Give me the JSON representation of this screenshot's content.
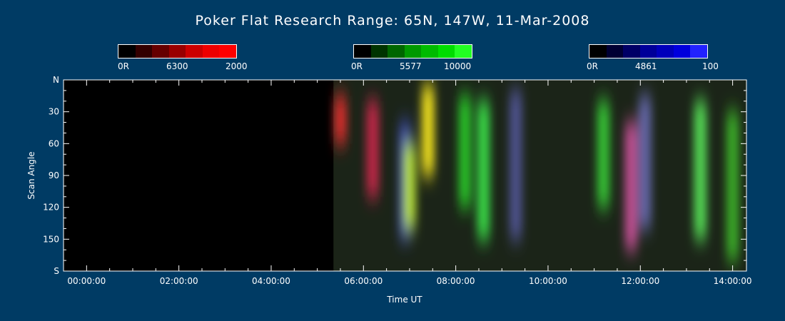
{
  "chart_data": {
    "type": "heatmap",
    "title": "Poker Flat Research Range: 65N, 147W, 11-Mar-2008",
    "xlabel": "Time UT",
    "ylabel": "Scan Angle",
    "xlim": [
      -0.5,
      14.3
    ],
    "ylim": [
      0,
      180
    ],
    "x_ticks": [
      0,
      2,
      4,
      6,
      8,
      10,
      12,
      14
    ],
    "x_tick_labels": [
      "00:00:00",
      "02:00:00",
      "04:00:00",
      "06:00:00",
      "08:00:00",
      "10:00:00",
      "12:00:00",
      "14:00:00"
    ],
    "y_ticks": [
      0,
      30,
      60,
      90,
      120,
      150,
      180
    ],
    "y_tick_labels": [
      "N",
      "30",
      "60",
      "90",
      "120",
      "150",
      "S"
    ],
    "data_start_time_hours": 5.35,
    "colorbars": [
      {
        "wavelength": "6300",
        "min_label": "0R",
        "max_label": "2000",
        "colors": [
          "#000000",
          "#330000",
          "#660000",
          "#990000",
          "#cc0000",
          "#ee0000",
          "#ff0000"
        ]
      },
      {
        "wavelength": "5577",
        "min_label": "0R",
        "max_label": "10000",
        "colors": [
          "#000000",
          "#003300",
          "#006600",
          "#009900",
          "#00bb00",
          "#00dd00",
          "#22ff22"
        ]
      },
      {
        "wavelength": "4861",
        "min_label": "0R",
        "max_label": "100",
        "colors": [
          "#000000",
          "#000033",
          "#000066",
          "#000099",
          "#0000bb",
          "#0000dd",
          "#2222ff"
        ]
      }
    ],
    "features": [
      {
        "time": 5.5,
        "angle_top": 15,
        "angle_bottom": 60,
        "color": "#ff3030",
        "intensity": 0.8
      },
      {
        "time": 6.2,
        "angle_top": 20,
        "angle_bottom": 110,
        "color": "#ff2a5a",
        "intensity": 0.7
      },
      {
        "time": 6.9,
        "angle_top": 40,
        "angle_bottom": 150,
        "color": "#5060ff",
        "intensity": 0.6
      },
      {
        "time": 7.0,
        "angle_top": 60,
        "angle_bottom": 140,
        "color": "#d0ff30",
        "intensity": 0.8
      },
      {
        "time": 7.4,
        "angle_top": 5,
        "angle_bottom": 90,
        "color": "#ffee20",
        "intensity": 0.9
      },
      {
        "time": 8.2,
        "angle_top": 15,
        "angle_bottom": 120,
        "color": "#30ff30",
        "intensity": 0.7
      },
      {
        "time": 8.6,
        "angle_top": 20,
        "angle_bottom": 150,
        "color": "#40ff50",
        "intensity": 0.8
      },
      {
        "time": 9.3,
        "angle_top": 10,
        "angle_bottom": 150,
        "color": "#8080ff",
        "intensity": 0.5
      },
      {
        "time": 11.2,
        "angle_top": 20,
        "angle_bottom": 120,
        "color": "#40ff40",
        "intensity": 0.7
      },
      {
        "time": 11.8,
        "angle_top": 40,
        "angle_bottom": 160,
        "color": "#ff60c0",
        "intensity": 0.7
      },
      {
        "time": 12.1,
        "angle_top": 15,
        "angle_bottom": 140,
        "color": "#9090ff",
        "intensity": 0.6
      },
      {
        "time": 13.3,
        "angle_top": 20,
        "angle_bottom": 150,
        "color": "#60ff60",
        "intensity": 0.8
      },
      {
        "time": 14.0,
        "angle_top": 30,
        "angle_bottom": 170,
        "color": "#50ff30",
        "intensity": 0.6
      }
    ]
  }
}
